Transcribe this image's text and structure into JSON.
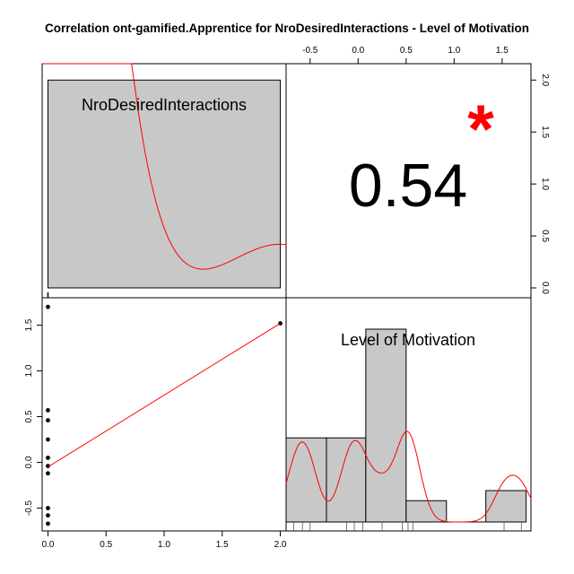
{
  "chart_data": {
    "type": "correlation_matrix",
    "title": "Correlation ont-gamified.Apprentice for NroDesiredInteractions - Level of Motivation",
    "variables": [
      "NroDesiredInteractions",
      "Level of Motivation"
    ],
    "correlation": {
      "value": "0.54",
      "significance": "*"
    },
    "scatter": {
      "x_var": "NroDesiredInteractions",
      "y_var": "Level of Motivation",
      "points": [
        {
          "x": 0,
          "y": 1.7
        },
        {
          "x": 0,
          "y": 0.57
        },
        {
          "x": 0,
          "y": 0.46
        },
        {
          "x": 0,
          "y": 0.25
        },
        {
          "x": 0,
          "y": 0.05
        },
        {
          "x": 0,
          "y": -0.04
        },
        {
          "x": 0,
          "y": -0.12
        },
        {
          "x": 0,
          "y": -0.5
        },
        {
          "x": 0,
          "y": -0.58
        },
        {
          "x": 0,
          "y": -0.67
        },
        {
          "x": 2,
          "y": 1.52
        }
      ],
      "fit_line": [
        {
          "x": 0,
          "y": -0.05
        },
        {
          "x": 2,
          "y": 1.52
        }
      ],
      "xlim": [
        -0.05,
        2.05
      ],
      "ylim": [
        -0.75,
        1.8
      ],
      "x_ticks": [
        "0.0",
        "0.5",
        "1.0",
        "1.5",
        "2.0"
      ],
      "y_ticks": [
        "-0.5",
        "0.0",
        "0.5",
        "1.0",
        "1.5"
      ]
    },
    "histogram_level_of_motivation": {
      "bins": [
        {
          "from": -0.75,
          "to": -0.33,
          "density": 0.75
        },
        {
          "from": -0.33,
          "to": 0.08,
          "density": 0.75
        },
        {
          "from": 0.08,
          "to": 0.5,
          "density": 1.72
        },
        {
          "from": 0.5,
          "to": 0.92,
          "density": 0.19
        },
        {
          "from": 0.92,
          "to": 1.33,
          "density": 0.0
        },
        {
          "from": 1.33,
          "to": 1.75,
          "density": 0.28
        }
      ],
      "rug": [
        -0.67,
        -0.58,
        -0.5,
        -0.12,
        -0.04,
        0.05,
        0.25,
        0.46,
        0.52,
        0.57,
        1.52,
        1.7
      ],
      "x_ticks": [
        "-0.5",
        "0.0",
        "0.5",
        "1.0",
        "1.5"
      ],
      "xlim": [
        -0.75,
        1.8
      ]
    },
    "histogram_nro_desired_interactions": {
      "bins": [
        {
          "from": 0,
          "to": 2,
          "density": 2.0
        }
      ],
      "rug": [
        0
      ],
      "right_ticks": [
        "0.0",
        "0.5",
        "1.0",
        "1.5",
        "2.0"
      ],
      "ylim": [
        0,
        2.08
      ]
    },
    "colors": {
      "bars": "#c8c8c8",
      "density": "#ff0000",
      "fit": "#ff0000",
      "star": "#ff0000"
    }
  }
}
